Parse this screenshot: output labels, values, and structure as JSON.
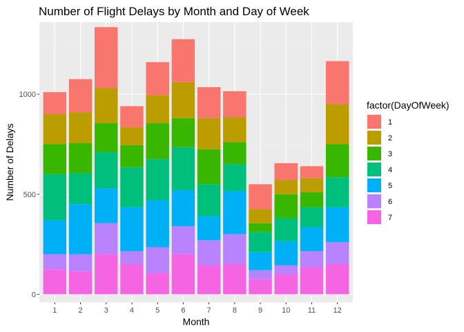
{
  "chart_data": {
    "type": "bar",
    "stacked": true,
    "title": "Number of Flight Delays by Month and Day of Week",
    "xlabel": "Month",
    "ylabel": "Number of Delays",
    "categories": [
      "1",
      "2",
      "3",
      "4",
      "5",
      "6",
      "7",
      "8",
      "9",
      "10",
      "11",
      "12"
    ],
    "ylim": [
      -40,
      1360
    ],
    "yticks": [
      0,
      500,
      1000
    ],
    "grid": true,
    "legend": {
      "title": "factor(DayOfWeek)",
      "position": "right"
    },
    "series": [
      {
        "name": "7",
        "color": "#F564E3",
        "values": [
          125,
          115,
          200,
          150,
          105,
          200,
          145,
          150,
          75,
          100,
          135,
          150
        ]
      },
      {
        "name": "6",
        "color": "#B983FF",
        "values": [
          75,
          85,
          155,
          65,
          130,
          140,
          125,
          150,
          45,
          45,
          80,
          110
        ]
      },
      {
        "name": "5",
        "color": "#00B0F6",
        "values": [
          170,
          250,
          175,
          220,
          235,
          180,
          120,
          215,
          90,
          120,
          120,
          175
        ]
      },
      {
        "name": "4",
        "color": "#00BF7D",
        "values": [
          230,
          155,
          180,
          200,
          205,
          215,
          160,
          135,
          100,
          115,
          100,
          150
        ]
      },
      {
        "name": "3",
        "color": "#39B600",
        "values": [
          150,
          150,
          145,
          110,
          180,
          145,
          175,
          110,
          45,
          120,
          75,
          165
        ]
      },
      {
        "name": "2",
        "color": "#BB9D00",
        "values": [
          150,
          155,
          175,
          90,
          140,
          180,
          155,
          125,
          70,
          70,
          70,
          200
        ]
      },
      {
        "name": "1",
        "color": "#F8766D",
        "values": [
          110,
          165,
          305,
          105,
          165,
          215,
          155,
          130,
          125,
          85,
          60,
          215
        ]
      }
    ]
  }
}
